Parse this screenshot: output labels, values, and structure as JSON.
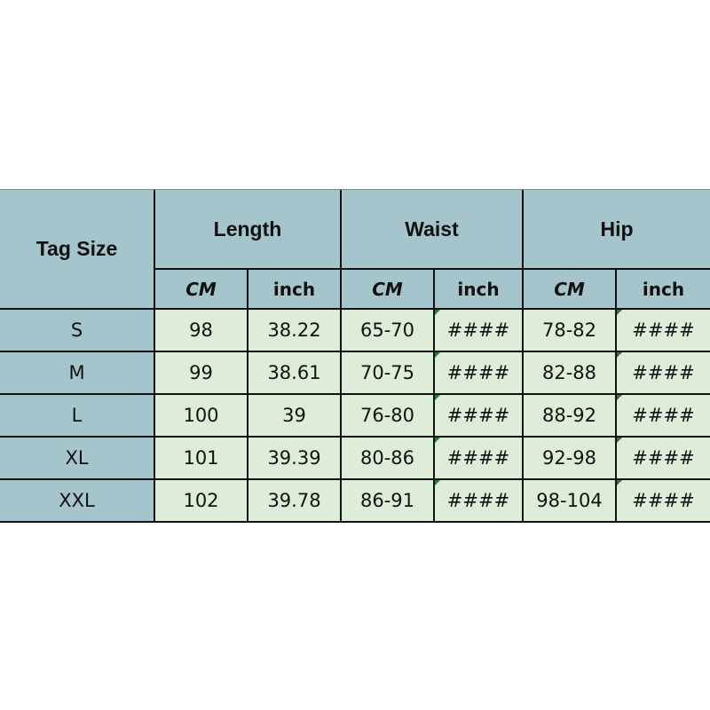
{
  "header": {
    "tag_size": "Tag Size",
    "groups": [
      "Length",
      "Waist",
      "Hip"
    ],
    "units": [
      "CM",
      "inch",
      "CM",
      "inch",
      "CM",
      "inch"
    ]
  },
  "rows": [
    {
      "size": "S",
      "cells": [
        "98",
        "38.22",
        "65-70",
        "####",
        "78-82",
        "####"
      ]
    },
    {
      "size": "M",
      "cells": [
        "99",
        "38.61",
        "70-75",
        "####",
        "82-88",
        "####"
      ]
    },
    {
      "size": "L",
      "cells": [
        "100",
        "39",
        "76-80",
        "####",
        "88-92",
        "####"
      ]
    },
    {
      "size": "XL",
      "cells": [
        "101",
        "39.39",
        "80-86",
        "####",
        "92-98",
        "####"
      ]
    },
    {
      "size": "XXL",
      "cells": [
        "102",
        "39.78",
        "86-91",
        "####",
        "98-104",
        "####"
      ]
    }
  ],
  "colors": {
    "header_bg": "#a4c5cb",
    "data_bg": "#deedd7",
    "comment_marker": "#1a8a1a"
  }
}
